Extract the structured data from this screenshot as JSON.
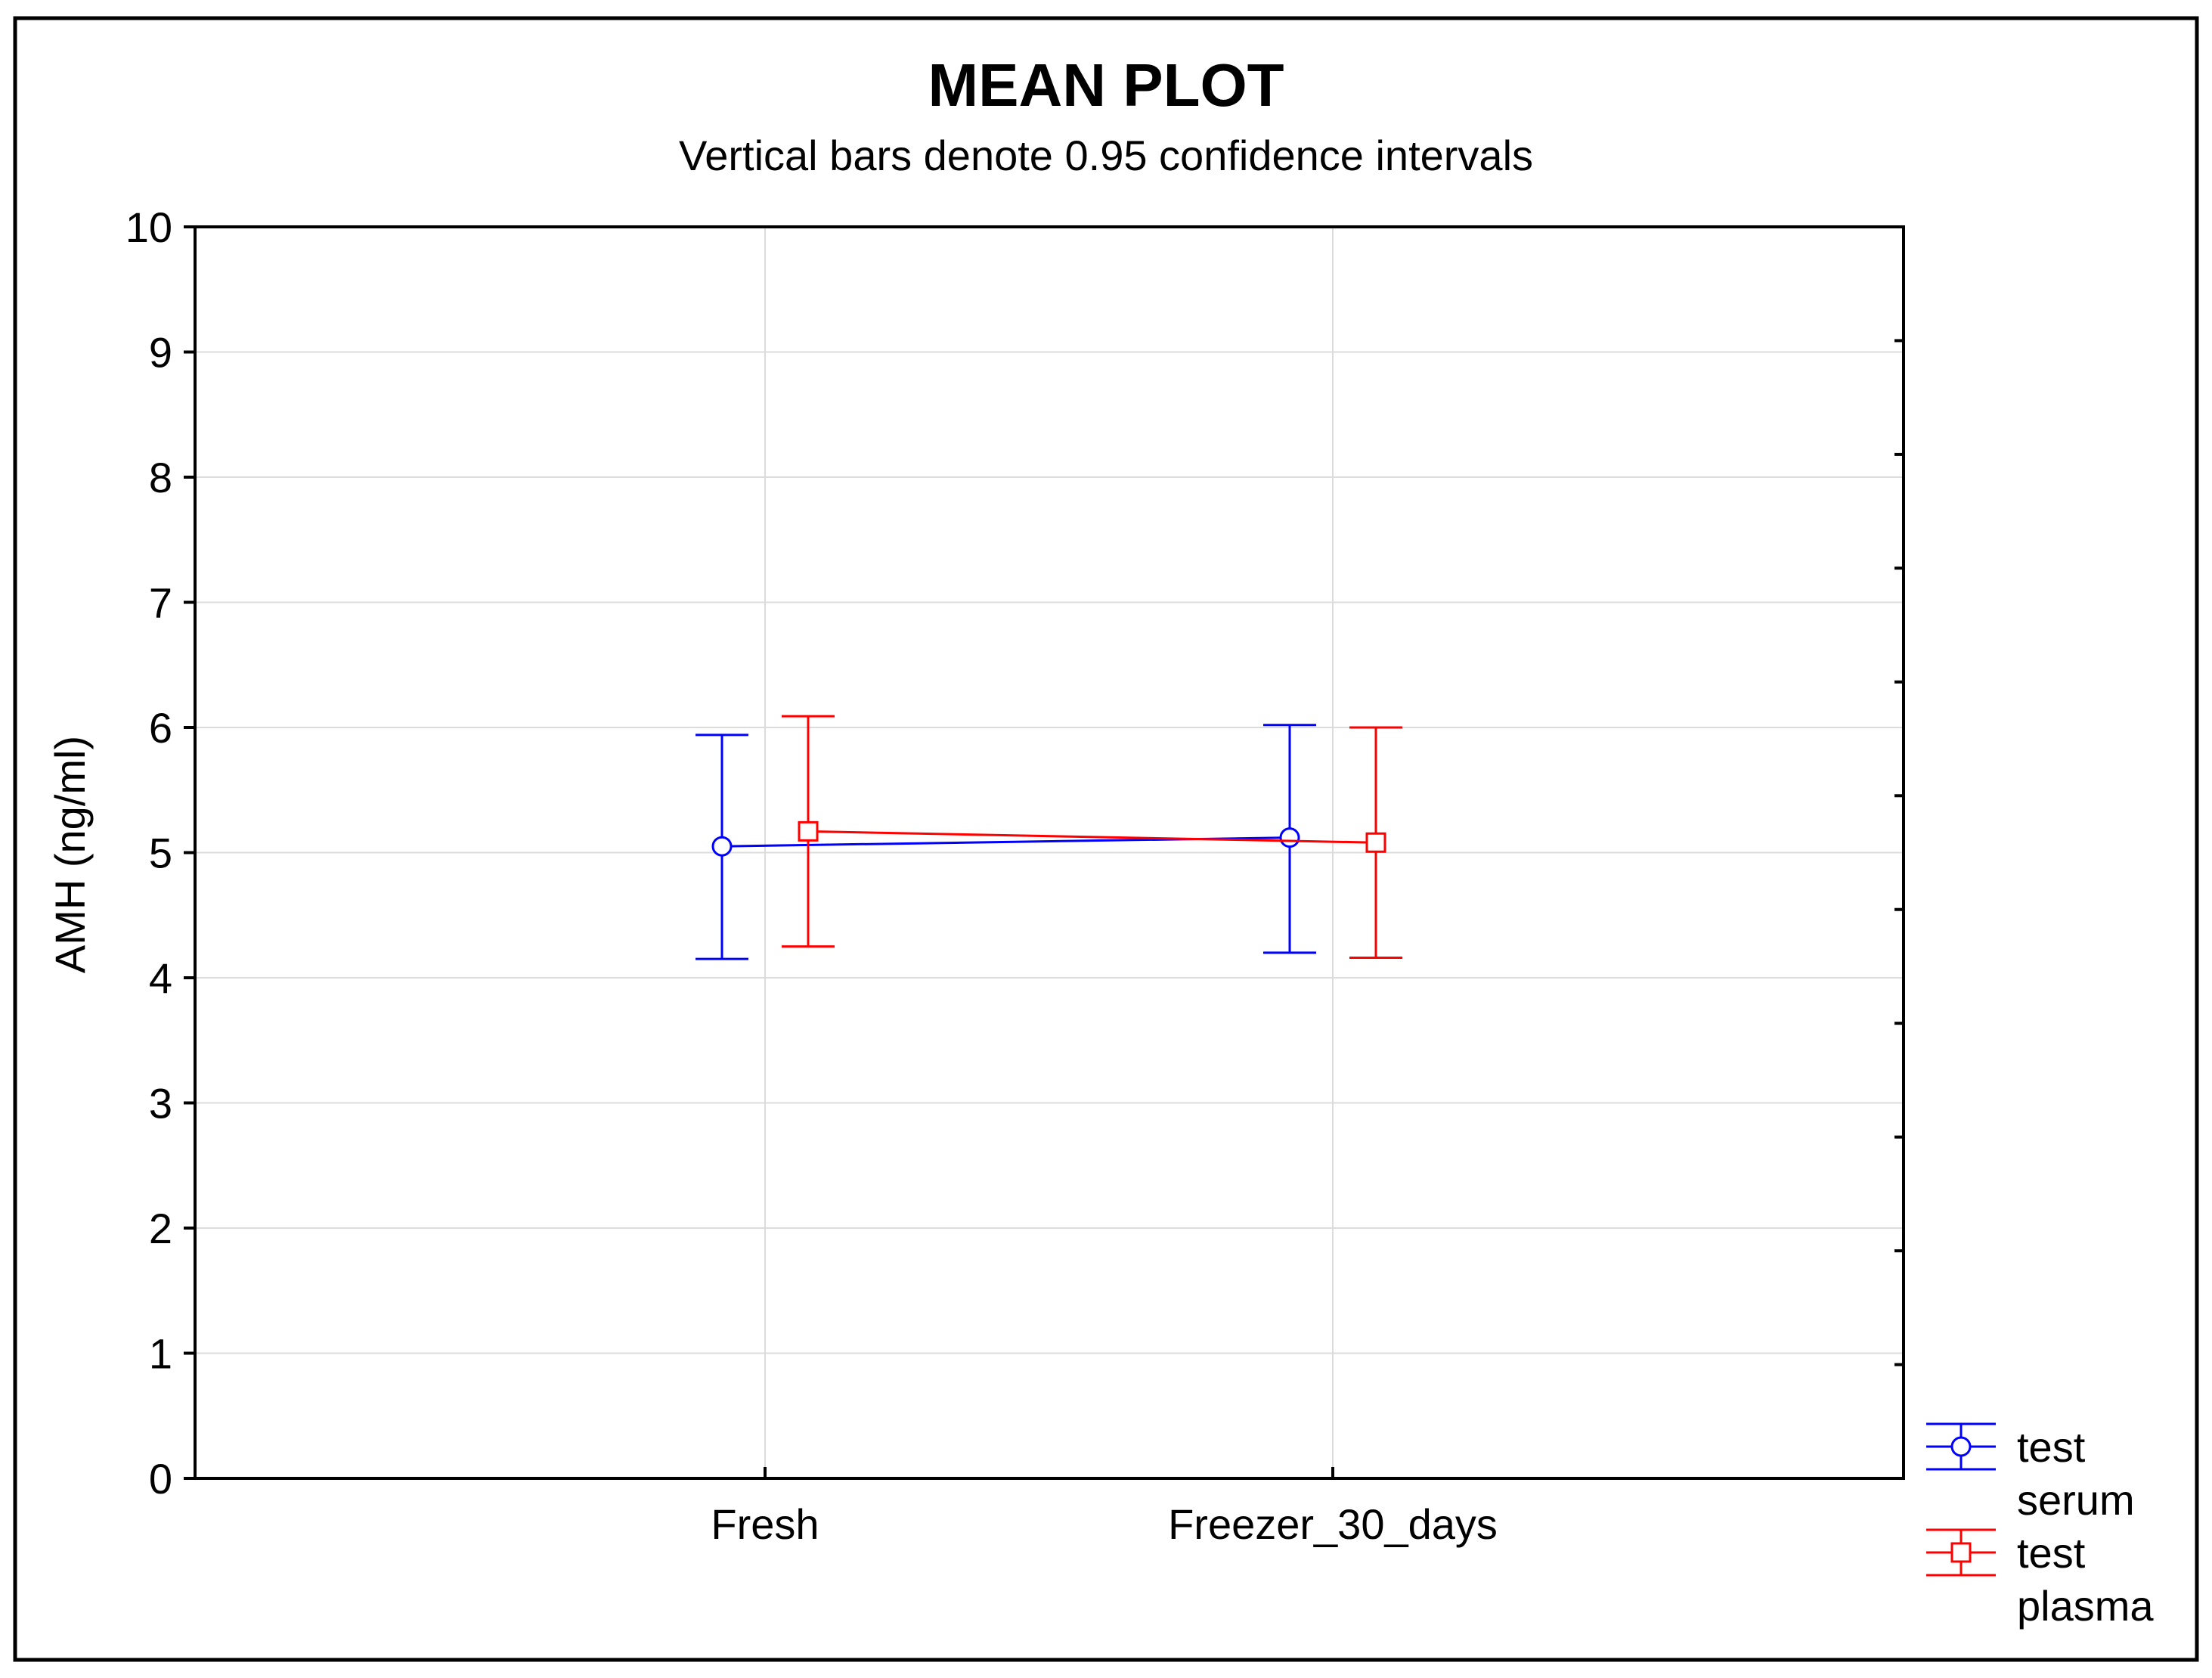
{
  "chart_data": {
    "type": "line",
    "title": "MEAN PLOT",
    "subtitle": "Vertical bars denote 0.95 confidence intervals",
    "xlabel": "",
    "ylabel": "AMH (ng/ml)",
    "categories": [
      "Fresh",
      "Freezer_30_days"
    ],
    "ylim": [
      0,
      10
    ],
    "yticks": [
      "0",
      "1",
      "2",
      "3",
      "4",
      "5",
      "6",
      "7",
      "8",
      "9",
      "10"
    ],
    "grid": true,
    "legend_position": "bottom-right, outside plot",
    "series": [
      {
        "name": "test serum",
        "legend_lines": [
          "test",
          "serum"
        ],
        "color": "#0000ff",
        "marker": "circle",
        "values": [
          5.05,
          5.12
        ],
        "ci_low": [
          4.15,
          4.2
        ],
        "ci_high": [
          5.94,
          6.02
        ]
      },
      {
        "name": "test plasma",
        "legend_lines": [
          "test",
          "plasma"
        ],
        "color": "#ff0000",
        "marker": "square",
        "values": [
          5.17,
          5.08
        ],
        "ci_low": [
          4.25,
          4.16
        ],
        "ci_high": [
          6.09,
          6.0
        ]
      }
    ]
  }
}
